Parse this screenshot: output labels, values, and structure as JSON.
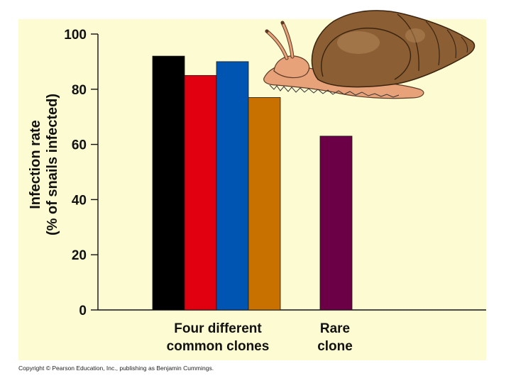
{
  "chart_data": {
    "type": "bar",
    "title": "",
    "ylabel_line1": "Infection rate",
    "ylabel_line2": "(% of snails infected)",
    "ylim": [
      0,
      100
    ],
    "yticks": [
      0,
      20,
      40,
      60,
      80,
      100
    ],
    "grid": false,
    "groups": [
      {
        "label_line1": "Four different",
        "label_line2": "common clones",
        "bars": [
          {
            "value": 92,
            "color": "#000000"
          },
          {
            "value": 85,
            "color": "#e0000f"
          },
          {
            "value": 90,
            "color": "#0055b3"
          },
          {
            "value": 77,
            "color": "#c87000"
          }
        ]
      },
      {
        "label_line1": "Rare",
        "label_line2": "clone",
        "bars": [
          {
            "value": 63,
            "color": "#6b0047"
          }
        ]
      }
    ]
  },
  "background_color": "#fdfbd2",
  "copyright": "Copyright © Pearson Education, Inc., publishing as Benjamin Cummings.",
  "illustration": "snail-illustration"
}
